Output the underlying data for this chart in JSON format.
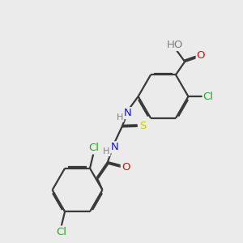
{
  "bg_color": "#ebebeb",
  "bond_color": "#3a3a3a",
  "bond_width": 1.6,
  "dbo": 0.055,
  "atom_colors": {
    "H": "#808080",
    "N": "#1414cc",
    "O": "#cc1414",
    "S": "#cccc00",
    "Cl": "#22aa22"
  },
  "font_size": 9.5,
  "fig_size": [
    3.0,
    3.0
  ],
  "dpi": 100
}
